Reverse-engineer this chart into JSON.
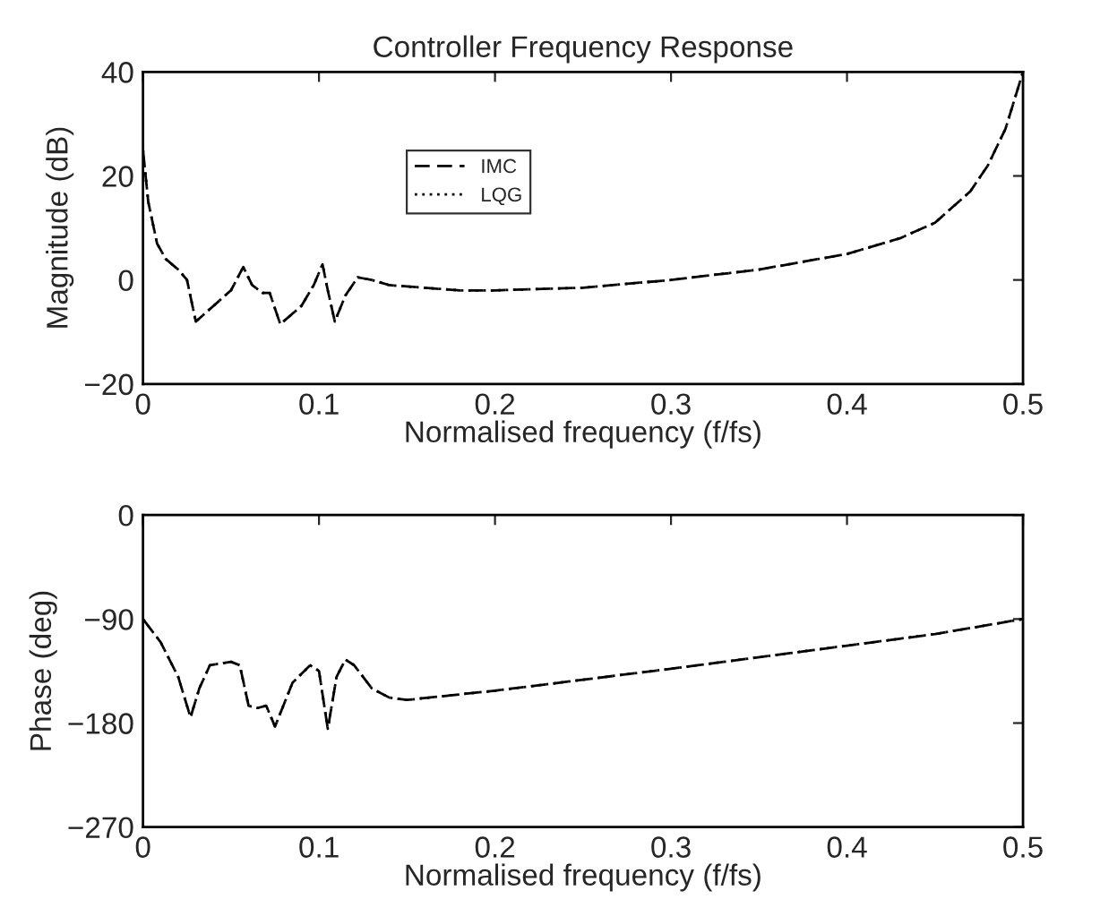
{
  "chart_data": [
    {
      "type": "line",
      "title": "Controller Frequency Response",
      "xlabel": "Normalised frequency (f/fs)",
      "ylabel": "Magnitude (dB)",
      "x": [
        0,
        0.003,
        0.008,
        0.013,
        0.02,
        0.025,
        0.03,
        0.04,
        0.05,
        0.057,
        0.062,
        0.068,
        0.072,
        0.078,
        0.09,
        0.097,
        0.102,
        0.105,
        0.109,
        0.115,
        0.122,
        0.13,
        0.14,
        0.16,
        0.18,
        0.2,
        0.25,
        0.3,
        0.35,
        0.4,
        0.43,
        0.45,
        0.47,
        0.48,
        0.49,
        0.5
      ],
      "series": [
        {
          "name": "IMC",
          "color": "#000000",
          "line_style": "dashed",
          "values": [
            25,
            15,
            7,
            4,
            2,
            0,
            -8,
            -5,
            -2,
            2.5,
            -1,
            -2.5,
            -2.5,
            -8.5,
            -5,
            -1,
            3,
            -2,
            -8,
            -3,
            0.5,
            0,
            -1,
            -1.5,
            -2,
            -2,
            -1.5,
            0,
            2,
            5,
            8,
            11,
            17,
            22,
            29,
            40
          ]
        },
        {
          "name": "LQG",
          "color": "#000000",
          "line_style": "dotted",
          "values": [
            25,
            15,
            7,
            4,
            2,
            0,
            -8,
            -5,
            -2,
            2.5,
            -1,
            -2.5,
            -2.5,
            -8.5,
            -5,
            -1,
            3,
            -2,
            -8,
            -3,
            0.5,
            0,
            -1,
            -1.5,
            -2,
            -2,
            -1.5,
            0,
            2,
            5,
            8,
            11,
            17,
            22,
            29,
            40
          ]
        }
      ],
      "xlim": [
        0,
        0.5
      ],
      "xticks": [
        0,
        0.1,
        0.2,
        0.3,
        0.4,
        0.5
      ],
      "ylim": [
        -20,
        40
      ],
      "yticks": [
        {
          "value": -20,
          "label": "−20"
        },
        0,
        20,
        40
      ],
      "grid": false,
      "legend": "top"
    },
    {
      "type": "line",
      "xlabel": "Normalised frequency (f/fs)",
      "ylabel": "Phase (deg)",
      "x": [
        0,
        0.01,
        0.02,
        0.027,
        0.032,
        0.038,
        0.05,
        0.055,
        0.06,
        0.065,
        0.07,
        0.075,
        0.085,
        0.095,
        0.1,
        0.105,
        0.11,
        0.115,
        0.12,
        0.13,
        0.14,
        0.15,
        0.2,
        0.3,
        0.4,
        0.45,
        0.5
      ],
      "series": [
        {
          "color": "#000000",
          "line_style": "dashed",
          "values": [
            -90,
            -110,
            -140,
            -175,
            -150,
            -130,
            -127,
            -130,
            -165,
            -167,
            -165,
            -183,
            -145,
            -130,
            -135,
            -185,
            -140,
            -125,
            -130,
            -150,
            -158,
            -160,
            -152,
            -133,
            -113,
            -103,
            -90
          ]
        },
        {
          "color": "#000000",
          "line_style": "dotted",
          "values": [
            -90,
            -110,
            -140,
            -175,
            -150,
            -130,
            -127,
            -130,
            -165,
            -167,
            -165,
            -183,
            -145,
            -130,
            -135,
            -185,
            -140,
            -125,
            -130,
            -150,
            -158,
            -160,
            -152,
            -133,
            -113,
            -103,
            -90
          ]
        }
      ],
      "xlim": [
        0,
        0.5
      ],
      "xticks": [
        0,
        0.1,
        0.2,
        0.3,
        0.4,
        0.5
      ],
      "ylim": [
        -270,
        0
      ],
      "yticks": [
        {
          "value": -270,
          "label": "−270"
        },
        {
          "value": -180,
          "label": "−180"
        },
        {
          "value": -90,
          "label": "−90"
        },
        0
      ],
      "grid": false
    }
  ]
}
